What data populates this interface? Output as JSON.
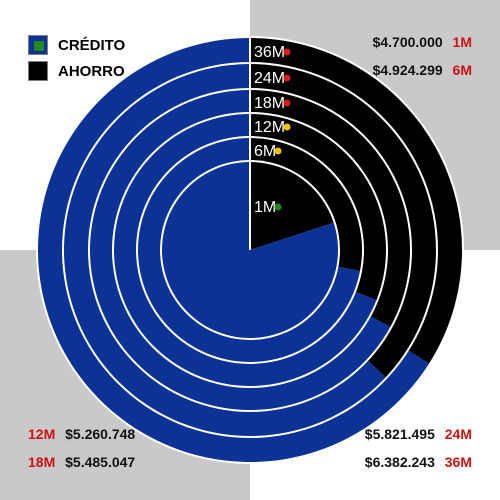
{
  "colors": {
    "credito": "#0d3296",
    "ahorro": "#000000",
    "ring_border": "#ffffff",
    "dot_red": "#d81b1b",
    "dot_yellow": "#f2c200",
    "dot_green": "#1f8a1f",
    "label_red": "#cc1111",
    "quad_gray": "#c9c9c9"
  },
  "legend": [
    {
      "label": "CRÉDITO",
      "color": "#0d3296",
      "inner": "#1f8a1f"
    },
    {
      "label": "AHORRO",
      "color": "#000000",
      "inner": "#000000"
    }
  ],
  "chart_data": {
    "type": "pie",
    "series_names": [
      "CRÉDITO",
      "AHORRO"
    ],
    "rings": [
      {
        "label": "36M",
        "dot": "red",
        "ahorro_share": 0.34
      },
      {
        "label": "24M",
        "dot": "red",
        "ahorro_share": 0.37
      },
      {
        "label": "18M",
        "dot": "red",
        "ahorro_share": 0.33
      },
      {
        "label": "12M",
        "dot": "yellow",
        "ahorro_share": 0.31
      },
      {
        "label": "6M",
        "dot": "yellow",
        "ahorro_share": 0.28
      },
      {
        "label": "1M",
        "dot": "green",
        "ahorro_share": 0.2
      }
    ]
  },
  "annotations": [
    {
      "id": "ann-1m",
      "period": "1M",
      "amount": "$4.700.000",
      "order": "amount-first"
    },
    {
      "id": "ann-6m",
      "period": "6M",
      "amount": "$4.924.299",
      "order": "amount-first"
    },
    {
      "id": "ann-12m",
      "period": "12M",
      "amount": "$5.260.748",
      "order": "period-first"
    },
    {
      "id": "ann-18m",
      "period": "18M",
      "amount": "$5.485.047",
      "order": "period-first"
    },
    {
      "id": "ann-24m",
      "period": "24M",
      "amount": "$5.821.495",
      "order": "amount-first"
    },
    {
      "id": "ann-36m",
      "period": "36M",
      "amount": "$6.382.243",
      "order": "amount-first"
    }
  ]
}
